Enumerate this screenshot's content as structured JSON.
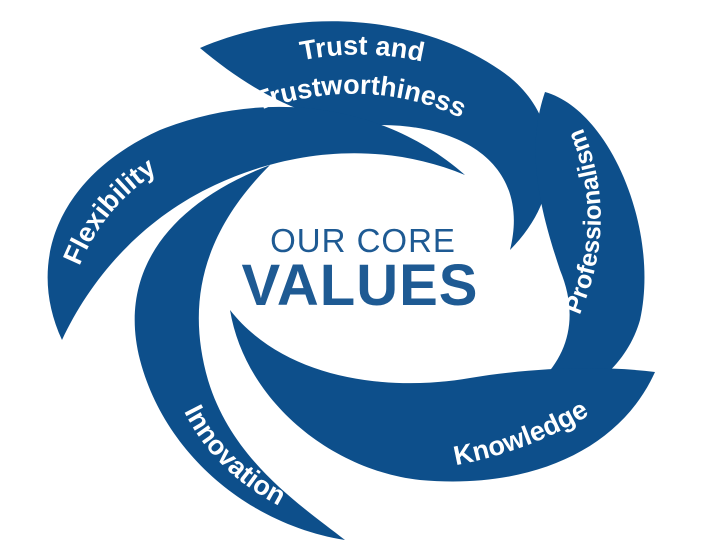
{
  "colors": {
    "blade": "#0d4f8b",
    "label": "#ffffff",
    "center_text": "#1e5a93",
    "background": "#ffffff"
  },
  "center": {
    "line1": "OUR CORE",
    "line2": "VALUES"
  },
  "values": [
    {
      "id": "trust",
      "lines": [
        "Trust and",
        "Trustworthiness"
      ]
    },
    {
      "id": "professionalism",
      "lines": [
        "Professionalism"
      ]
    },
    {
      "id": "knowledge",
      "lines": [
        "Knowledge"
      ]
    },
    {
      "id": "innovation",
      "lines": [
        "Innovation"
      ]
    },
    {
      "id": "flexibility",
      "lines": [
        "Flexibility"
      ]
    }
  ]
}
